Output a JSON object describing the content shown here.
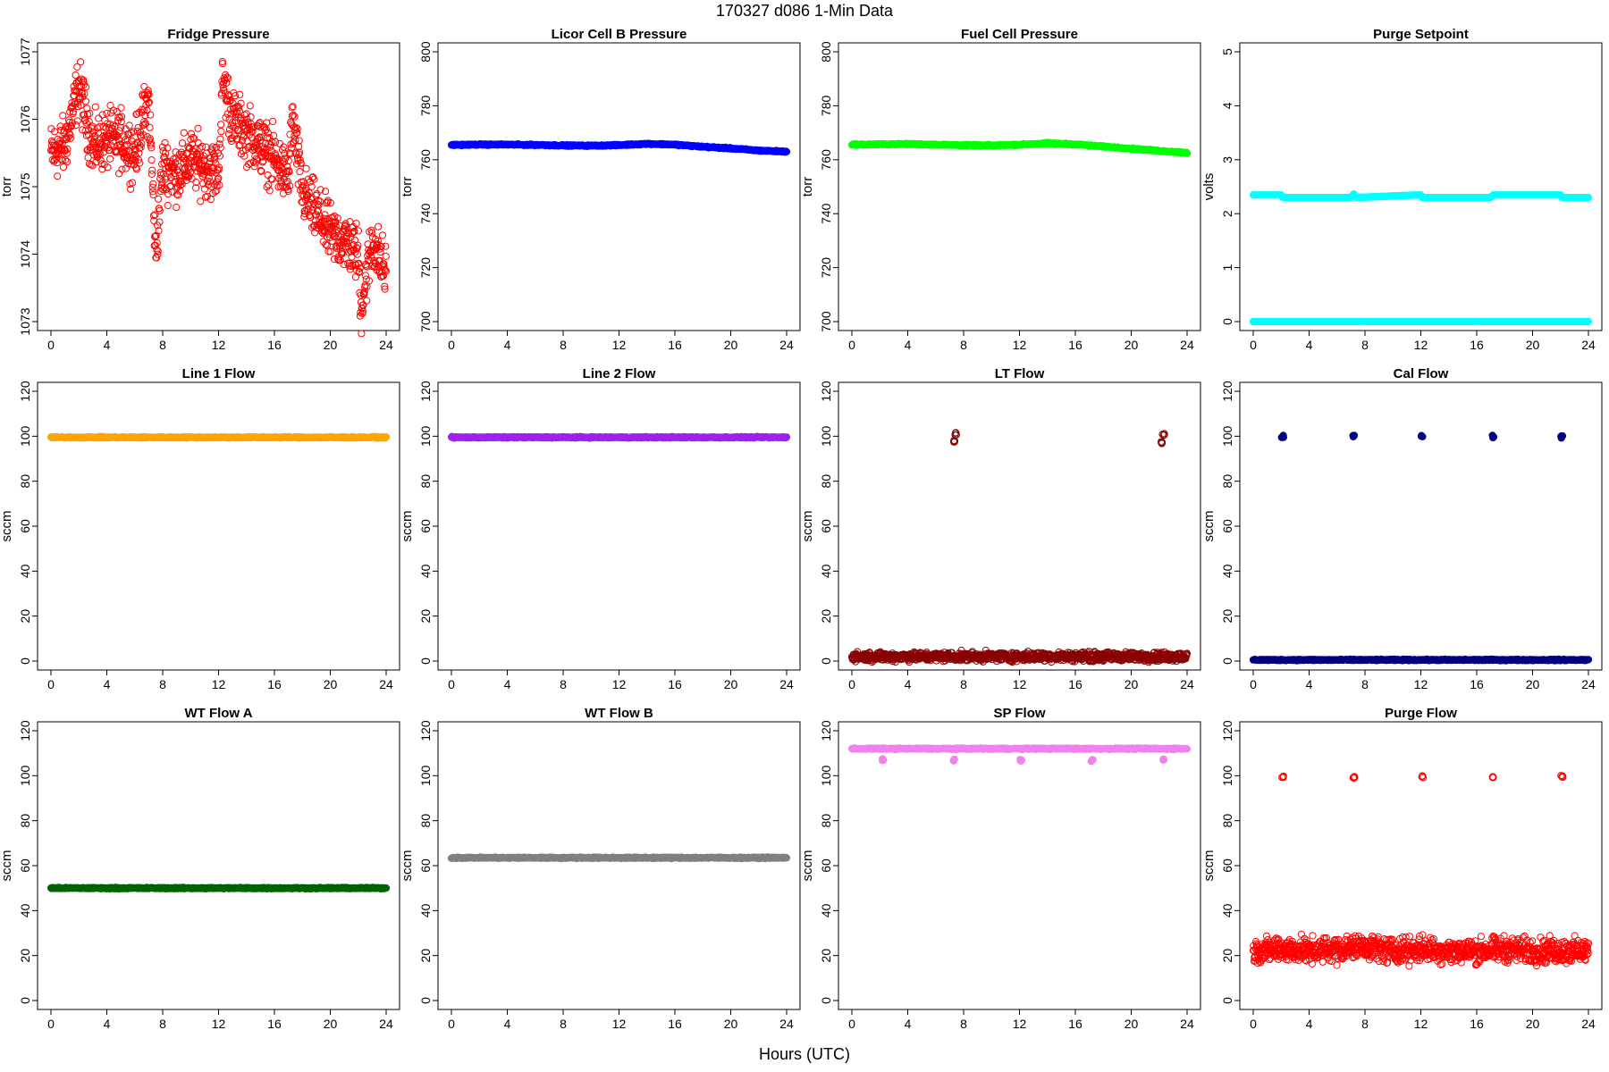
{
  "figure": {
    "title": "170327   d086   1-Min Data",
    "xlabel": "Hours (UTC)"
  },
  "chart_data": [
    {
      "type": "scatter",
      "title": "Fridge Pressure",
      "ylabel": "torr",
      "xlim": [
        0,
        24
      ],
      "xticks": [
        0,
        4,
        8,
        12,
        16,
        20,
        24
      ],
      "ylim": [
        1073,
        1077
      ],
      "yticks": [
        1073,
        1074,
        1075,
        1076,
        1077
      ],
      "color": "#ff0000",
      "marker": "open",
      "grid": false,
      "series": [
        {
          "x": [
            0,
            1,
            2,
            3,
            4,
            5,
            6,
            7,
            7.5,
            8,
            9,
            10,
            11,
            12,
            12.3,
            13,
            14,
            15,
            16,
            17,
            17.3,
            18,
            19,
            20,
            21,
            22,
            22.2,
            23,
            24
          ],
          "y": [
            1075.5,
            1075.6,
            1076.5,
            1075.6,
            1075.7,
            1075.7,
            1075.5,
            1076.3,
            1074.0,
            1075.3,
            1075.2,
            1075.4,
            1075.3,
            1075.2,
            1076.6,
            1076.0,
            1075.8,
            1075.6,
            1075.4,
            1075.1,
            1076.0,
            1074.9,
            1074.6,
            1074.3,
            1074.2,
            1074.0,
            1073.2,
            1074.2,
            1073.7
          ]
        }
      ]
    },
    {
      "type": "scatter",
      "title": "Licor Cell B Pressure",
      "ylabel": "torr",
      "xlim": [
        0,
        24
      ],
      "xticks": [
        0,
        4,
        8,
        12,
        16,
        20,
        24
      ],
      "ylim": [
        700,
        800
      ],
      "yticks": [
        700,
        720,
        740,
        760,
        780,
        800
      ],
      "color": "#0000ff",
      "marker": "filled",
      "grid": false,
      "series": [
        {
          "x": [
            0,
            2,
            4,
            6,
            8,
            10,
            12,
            14,
            16,
            18,
            20,
            22,
            24
          ],
          "y": [
            765.5,
            765.6,
            765.6,
            765.5,
            765.3,
            765.2,
            765.4,
            765.9,
            765.6,
            764.8,
            764.2,
            763.4,
            763.0
          ]
        }
      ]
    },
    {
      "type": "scatter",
      "title": "Fuel Cell Pressure",
      "ylabel": "torr",
      "xlim": [
        0,
        24
      ],
      "xticks": [
        0,
        4,
        8,
        12,
        16,
        20,
        24
      ],
      "ylim": [
        700,
        800
      ],
      "yticks": [
        700,
        720,
        740,
        760,
        780,
        800
      ],
      "color": "#00ff00",
      "marker": "filled",
      "grid": false,
      "series": [
        {
          "x": [
            0,
            2,
            4,
            6,
            8,
            10,
            12,
            14,
            16,
            18,
            20,
            22,
            24
          ],
          "y": [
            765.6,
            765.7,
            765.8,
            765.6,
            765.4,
            765.3,
            765.6,
            766.1,
            765.7,
            764.9,
            764.1,
            763.3,
            762.6
          ]
        }
      ]
    },
    {
      "type": "scatter",
      "title": "Purge Setpoint",
      "ylabel": "volts",
      "xlim": [
        0,
        24
      ],
      "xticks": [
        0,
        4,
        8,
        12,
        16,
        20,
        24
      ],
      "ylim": [
        0,
        5
      ],
      "yticks": [
        0,
        1,
        2,
        3,
        4,
        5
      ],
      "color": "#00ffff",
      "marker": "filled",
      "grid": false,
      "series": [
        {
          "x": [
            0,
            2,
            4,
            6,
            8,
            10,
            12,
            14,
            16,
            18,
            20,
            22,
            24
          ],
          "y": [
            0,
            0,
            0,
            0,
            0,
            0,
            0,
            0,
            0,
            0,
            0,
            0,
            0
          ]
        },
        {
          "x": [
            2.0,
            2.1,
            7.0,
            7.2,
            7.4,
            12.0,
            12.1,
            17.0,
            17.2,
            22.0,
            22.1
          ],
          "y": [
            2.35,
            2.3,
            2.3,
            2.37,
            2.3,
            2.35,
            2.3,
            2.3,
            2.35,
            2.35,
            2.3
          ]
        }
      ]
    },
    {
      "type": "scatter",
      "title": "Line 1 Flow",
      "ylabel": "sccm",
      "xlim": [
        0,
        24
      ],
      "xticks": [
        0,
        4,
        8,
        12,
        16,
        20,
        24
      ],
      "ylim": [
        0,
        120
      ],
      "yticks": [
        0,
        20,
        40,
        60,
        80,
        100,
        120
      ],
      "color": "#ffa500",
      "marker": "filled",
      "grid": false,
      "series": [
        {
          "x": [
            0,
            4,
            8,
            12,
            16,
            20,
            24
          ],
          "y": [
            99.5,
            99.5,
            99.5,
            99.5,
            99.5,
            99.5,
            99.5
          ]
        }
      ]
    },
    {
      "type": "scatter",
      "title": "Line 2 Flow",
      "ylabel": "sccm",
      "xlim": [
        0,
        24
      ],
      "xticks": [
        0,
        4,
        8,
        12,
        16,
        20,
        24
      ],
      "ylim": [
        0,
        120
      ],
      "yticks": [
        0,
        20,
        40,
        60,
        80,
        100,
        120
      ],
      "color": "#a020f0",
      "marker": "filled",
      "grid": false,
      "series": [
        {
          "x": [
            0,
            4,
            8,
            12,
            16,
            20,
            24
          ],
          "y": [
            99.5,
            99.5,
            99.5,
            99.5,
            99.5,
            99.5,
            99.5
          ]
        }
      ]
    },
    {
      "type": "scatter",
      "title": "LT Flow",
      "ylabel": "sccm",
      "xlim": [
        0,
        24
      ],
      "xticks": [
        0,
        4,
        8,
        12,
        16,
        20,
        24
      ],
      "ylim": [
        0,
        120
      ],
      "yticks": [
        0,
        20,
        40,
        60,
        80,
        100,
        120
      ],
      "color": "#8b0000",
      "marker": "open",
      "grid": false,
      "series": [
        {
          "x": [
            0,
            2,
            4,
            6,
            8,
            10,
            12,
            14,
            16,
            18,
            20,
            22,
            24
          ],
          "y": [
            2,
            2,
            2,
            2,
            2,
            2,
            2,
            2,
            2,
            2,
            2,
            2,
            2
          ]
        },
        {
          "x": [
            7.3,
            7.4,
            22.2,
            22.3
          ],
          "y": [
            98,
            101,
            97,
            101
          ]
        }
      ]
    },
    {
      "type": "scatter",
      "title": "Cal Flow",
      "ylabel": "sccm",
      "xlim": [
        0,
        24
      ],
      "xticks": [
        0,
        4,
        8,
        12,
        16,
        20,
        24
      ],
      "ylim": [
        0,
        120
      ],
      "yticks": [
        0,
        20,
        40,
        60,
        80,
        100,
        120
      ],
      "color": "#000080",
      "marker": "filled",
      "grid": false,
      "series": [
        {
          "x": [
            0,
            4,
            8,
            12,
            16,
            20,
            24
          ],
          "y": [
            0.5,
            0.5,
            0.5,
            0.5,
            0.5,
            0.5,
            0.5
          ]
        },
        {
          "x": [
            2.1,
            7.2,
            12.1,
            17.2,
            22.1
          ],
          "y": [
            99.8,
            99.8,
            99.8,
            99.8,
            99.8
          ]
        }
      ]
    },
    {
      "type": "scatter",
      "title": "WT Flow A",
      "ylabel": "sccm",
      "xlim": [
        0,
        24
      ],
      "xticks": [
        0,
        4,
        8,
        12,
        16,
        20,
        24
      ],
      "ylim": [
        0,
        120
      ],
      "yticks": [
        0,
        20,
        40,
        60,
        80,
        100,
        120
      ],
      "color": "#006400",
      "marker": "filled",
      "grid": false,
      "series": [
        {
          "x": [
            0,
            4,
            8,
            12,
            16,
            20,
            24
          ],
          "y": [
            50,
            50,
            50,
            50,
            50,
            50,
            50
          ]
        }
      ]
    },
    {
      "type": "scatter",
      "title": "WT Flow B",
      "ylabel": "sccm",
      "xlim": [
        0,
        24
      ],
      "xticks": [
        0,
        4,
        8,
        12,
        16,
        20,
        24
      ],
      "ylim": [
        0,
        120
      ],
      "yticks": [
        0,
        20,
        40,
        60,
        80,
        100,
        120
      ],
      "color": "#808080",
      "marker": "filled",
      "grid": false,
      "series": [
        {
          "x": [
            0,
            4,
            8,
            12,
            16,
            20,
            24
          ],
          "y": [
            63.5,
            63.5,
            63.5,
            63.5,
            63.5,
            63.5,
            63.5
          ]
        }
      ]
    },
    {
      "type": "scatter",
      "title": "SP Flow",
      "ylabel": "sccm",
      "xlim": [
        0,
        24
      ],
      "xticks": [
        0,
        4,
        8,
        12,
        16,
        20,
        24
      ],
      "ylim": [
        0,
        120
      ],
      "yticks": [
        0,
        20,
        40,
        60,
        80,
        100,
        120
      ],
      "color": "#ee82ee",
      "marker": "filled",
      "grid": false,
      "series": [
        {
          "x": [
            0,
            4,
            8,
            12,
            16,
            20,
            24
          ],
          "y": [
            112,
            112,
            112,
            112,
            112,
            112,
            112
          ]
        },
        {
          "x": [
            2.2,
            7.3,
            12.1,
            17.2,
            22.3
          ],
          "y": [
            107,
            107,
            107,
            107,
            107
          ]
        }
      ]
    },
    {
      "type": "scatter",
      "title": "Purge Flow",
      "ylabel": "sccm",
      "xlim": [
        0,
        24
      ],
      "xticks": [
        0,
        4,
        8,
        12,
        16,
        20,
        24
      ],
      "ylim": [
        0,
        120
      ],
      "yticks": [
        0,
        20,
        40,
        60,
        80,
        100,
        120
      ],
      "color": "#ff0000",
      "marker": "open",
      "grid": false,
      "series": [
        {
          "x": [
            0,
            2,
            4,
            6,
            8,
            10,
            12,
            14,
            16,
            18,
            20,
            22,
            24
          ],
          "y": [
            22,
            23,
            22,
            23,
            24,
            22,
            23,
            22,
            22,
            23,
            22,
            22,
            22
          ]
        },
        {
          "x": [
            2.1,
            7.2,
            12.1,
            17.2,
            22.1
          ],
          "y": [
            99.5,
            99.5,
            99.5,
            99.5,
            99.5
          ]
        }
      ]
    }
  ]
}
